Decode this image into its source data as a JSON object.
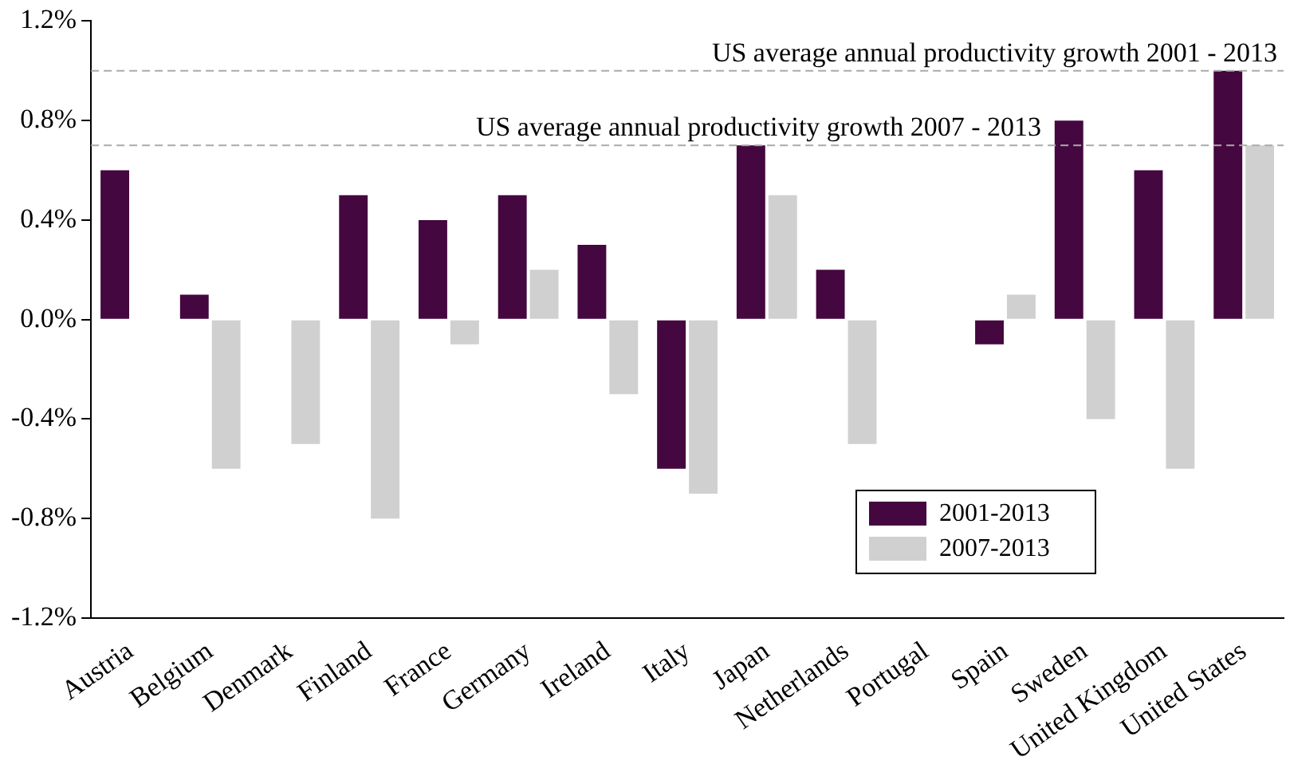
{
  "chart_data": {
    "type": "bar",
    "categories": [
      "Austria",
      "Belgium",
      "Denmark",
      "Finland",
      "France",
      "Germany",
      "Ireland",
      "Italy",
      "Japan",
      "Netherlands",
      "Portugal",
      "Spain",
      "Sweden",
      "United Kingdom",
      "United States"
    ],
    "series": [
      {
        "name": "2001-2013",
        "color": "#44073f",
        "values": [
          0.6,
          0.1,
          0,
          0.5,
          0.4,
          0.5,
          0.3,
          -0.6,
          0.7,
          0.2,
          0,
          -0.1,
          0.8,
          0.6,
          1.0
        ]
      },
      {
        "name": "2007-2013",
        "color": "#d0d0d0",
        "values": [
          0,
          -0.6,
          -0.5,
          -0.8,
          -0.1,
          0.2,
          -0.3,
          -0.7,
          0.5,
          -0.5,
          0,
          0.1,
          -0.4,
          -0.6,
          0.7
        ]
      }
    ],
    "ylim": [
      -1.2,
      1.2
    ],
    "yticks": [
      {
        "value": -1.2,
        "label": "-1.2%"
      },
      {
        "value": -0.8,
        "label": "-0.8%"
      },
      {
        "value": -0.4,
        "label": "-0.4%"
      },
      {
        "value": 0,
        "label": "0.0%"
      },
      {
        "value": 0.4,
        "label": "0.4%"
      },
      {
        "value": 0.8,
        "label": "0.8%"
      },
      {
        "value": 1.2,
        "label": "1.2%"
      }
    ],
    "ref_lines": [
      {
        "axis": "y",
        "value": 1.0,
        "label": "US average annual productivity growth 2001 - 2013",
        "color": "#aaaaaa",
        "line_style": "dashed"
      },
      {
        "axis": "y",
        "value": 0.7,
        "label": "US average annual productivity growth 2007 - 2013",
        "color": "#aaaaaa",
        "line_style": "dashed"
      }
    ],
    "grid": false,
    "legend": "bottom right"
  }
}
